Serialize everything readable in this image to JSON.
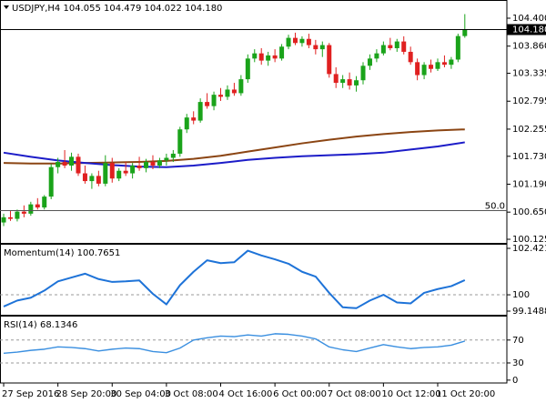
{
  "chart_data": [
    {
      "type": "candlestick",
      "title": "USDJPY,H4  104.055 104.479 104.022 104.180",
      "xlim": [
        -0.54,
        74.2
      ],
      "xticks": [
        {
          "value": 0,
          "label": "27 Sep 2016"
        },
        {
          "value": 8,
          "label": "28 Sep 20:00"
        },
        {
          "value": 16,
          "label": "30 Sep 04:00"
        },
        {
          "value": 24,
          "label": "3 Oct 08:00"
        },
        {
          "value": 32,
          "label": "4 Oct 16:00"
        },
        {
          "value": 40,
          "label": "6 Oct 00:00"
        },
        {
          "value": 48,
          "label": "7 Oct 08:00"
        },
        {
          "value": 56,
          "label": "10 Oct 12:00"
        },
        {
          "value": 64,
          "label": "11 Oct 20:00"
        }
      ],
      "ylim": [
        100.055,
        104.752
      ],
      "yticks": [
        {
          "value": 104.4,
          "label": "104.400"
        },
        {
          "value": 103.86,
          "label": "103.860"
        },
        103.335,
        102.795,
        102.255,
        {
          "value": 101.73,
          "label": "101.730"
        },
        {
          "value": 101.19,
          "label": "101.190"
        },
        {
          "value": 100.65,
          "label": "100.650"
        },
        100.125
      ],
      "up_color": "#1aa31a",
      "down_color": "#e02020",
      "open": [
        100.45,
        100.55,
        100.52,
        100.66,
        100.62,
        100.8,
        100.74,
        100.95,
        101.52,
        101.62,
        101.55,
        101.72,
        101.4,
        101.25,
        101.35,
        101.2,
        101.6,
        101.3,
        101.45,
        101.4,
        101.55,
        101.5,
        101.62,
        101.55,
        101.65,
        101.7,
        101.78,
        102.25,
        102.48,
        102.42,
        102.78,
        102.7,
        102.92,
        102.88,
        103.02,
        102.95,
        103.22,
        103.62,
        103.72,
        103.58,
        103.68,
        103.62,
        103.85,
        104.02,
        103.92,
        104.0,
        103.88,
        103.8,
        103.88,
        103.32,
        103.15,
        103.22,
        103.1,
        103.2,
        103.48,
        103.62,
        103.72,
        103.88,
        103.82,
        103.95,
        103.75,
        103.55,
        103.3,
        103.5,
        103.42,
        103.55,
        103.5,
        103.6,
        104.055
      ],
      "high": [
        100.62,
        100.68,
        100.7,
        100.78,
        100.85,
        100.92,
        100.98,
        101.58,
        101.7,
        101.85,
        101.8,
        101.78,
        101.55,
        101.4,
        101.45,
        101.75,
        101.7,
        101.5,
        101.62,
        101.6,
        101.72,
        101.68,
        101.75,
        101.7,
        101.78,
        101.85,
        102.3,
        102.55,
        102.6,
        102.85,
        102.95,
        102.98,
        103.05,
        103.1,
        103.15,
        103.3,
        103.7,
        103.8,
        103.82,
        103.75,
        103.8,
        103.9,
        104.08,
        104.12,
        104.05,
        104.1,
        103.98,
        103.95,
        103.92,
        103.45,
        103.3,
        103.35,
        103.28,
        103.55,
        103.7,
        103.8,
        103.95,
        104.02,
        104.0,
        104.05,
        103.85,
        103.62,
        103.55,
        103.6,
        103.62,
        103.68,
        103.65,
        104.1,
        104.479
      ],
      "low": [
        100.38,
        100.48,
        100.47,
        100.55,
        100.58,
        100.7,
        100.7,
        100.9,
        101.4,
        101.5,
        101.45,
        101.35,
        101.2,
        101.1,
        101.15,
        101.15,
        101.22,
        101.25,
        101.35,
        101.3,
        101.45,
        101.42,
        101.48,
        101.5,
        101.55,
        101.62,
        101.72,
        102.18,
        102.35,
        102.38,
        102.65,
        102.62,
        102.8,
        102.82,
        102.9,
        102.9,
        103.15,
        103.55,
        103.5,
        103.48,
        103.55,
        103.58,
        103.8,
        103.88,
        103.85,
        103.82,
        103.7,
        103.65,
        103.25,
        103.05,
        103.05,
        103.02,
        102.98,
        103.12,
        103.4,
        103.55,
        103.68,
        103.78,
        103.75,
        103.7,
        103.5,
        103.2,
        103.22,
        103.35,
        103.38,
        103.45,
        103.42,
        103.55,
        104.022
      ],
      "close": [
        100.55,
        100.52,
        100.66,
        100.62,
        100.8,
        100.74,
        100.95,
        101.52,
        101.62,
        101.55,
        101.72,
        101.4,
        101.25,
        101.35,
        101.2,
        101.6,
        101.3,
        101.45,
        101.4,
        101.55,
        101.5,
        101.62,
        101.55,
        101.65,
        101.7,
        101.78,
        102.25,
        102.48,
        102.42,
        102.78,
        102.7,
        102.92,
        102.88,
        103.02,
        102.95,
        103.22,
        103.62,
        103.72,
        103.58,
        103.68,
        103.62,
        103.85,
        104.02,
        103.92,
        104.0,
        103.88,
        103.8,
        103.88,
        103.32,
        103.15,
        103.22,
        103.1,
        103.2,
        103.48,
        103.62,
        103.72,
        103.88,
        103.82,
        103.95,
        103.75,
        103.55,
        103.3,
        103.5,
        103.42,
        103.55,
        103.5,
        103.6,
        104.055,
        104.18
      ],
      "lines": [
        {
          "color": "#8b4513",
          "x": [
            0,
            4,
            8,
            12,
            16,
            20,
            24,
            28,
            32,
            36,
            40,
            44,
            48,
            52,
            56,
            60,
            64,
            68
          ],
          "values": [
            101.6,
            101.59,
            101.59,
            101.6,
            101.61,
            101.62,
            101.64,
            101.68,
            101.74,
            101.82,
            101.9,
            101.98,
            102.05,
            102.11,
            102.16,
            102.2,
            102.23,
            102.25
          ]
        },
        {
          "color": "#1c1cc8",
          "x": [
            0,
            4,
            8,
            12,
            16,
            20,
            24,
            28,
            32,
            36,
            40,
            44,
            48,
            52,
            56,
            60,
            64,
            68
          ],
          "values": [
            101.8,
            101.72,
            101.65,
            101.6,
            101.56,
            101.53,
            101.52,
            101.55,
            101.6,
            101.66,
            101.7,
            101.73,
            101.75,
            101.77,
            101.8,
            101.86,
            101.92,
            102.0
          ]
        }
      ],
      "last_price": {
        "value": 104.18,
        "label": "104.180"
      },
      "hline": {
        "price": 100.68,
        "text": "50.0"
      }
    },
    {
      "type": "line",
      "title": "Momentum(14) 100.7651",
      "ylim": [
        99.1488,
        102.4214
      ],
      "yticks": [
        102.4214,
        100,
        99.1488
      ],
      "levels": [
        100
      ],
      "series": [
        {
          "color": "#1e73d8",
          "x": [
            0,
            2,
            4,
            6,
            8,
            10,
            12,
            14,
            16,
            18,
            20,
            22,
            24,
            26,
            28,
            30,
            32,
            34,
            36,
            38,
            40,
            42,
            44,
            46,
            48,
            50,
            52,
            54,
            56,
            58,
            60,
            62,
            64,
            66,
            68
          ],
          "values": [
            99.39,
            99.7,
            99.85,
            100.22,
            100.7,
            100.9,
            101.1,
            100.82,
            100.67,
            100.7,
            100.75,
            100.05,
            99.5,
            100.5,
            101.2,
            101.8,
            101.65,
            101.7,
            102.3,
            102.05,
            101.85,
            101.62,
            101.2,
            100.95,
            100.1,
            99.35,
            99.3,
            99.7,
            100.0,
            99.6,
            99.55,
            100.1,
            100.3,
            100.45,
            100.7651
          ]
        }
      ]
    },
    {
      "type": "line",
      "title": "RSI(14) 68.1346",
      "ylim": [
        -5,
        111
      ],
      "yticks": [
        70,
        30,
        0
      ],
      "levels": [
        70,
        30
      ],
      "series": [
        {
          "color": "#3a8fe0",
          "x": [
            0,
            2,
            4,
            6,
            8,
            10,
            12,
            14,
            16,
            18,
            20,
            22,
            24,
            26,
            28,
            30,
            32,
            34,
            36,
            38,
            40,
            42,
            44,
            46,
            48,
            50,
            52,
            54,
            56,
            58,
            60,
            62,
            64,
            66,
            68
          ],
          "values": [
            47,
            49,
            52,
            54,
            58,
            57,
            55,
            51,
            54,
            56,
            55,
            50,
            48,
            56,
            70,
            74,
            77,
            76,
            79,
            77,
            81,
            80,
            77,
            72,
            58,
            53,
            50,
            56,
            62,
            58,
            55,
            57,
            58,
            61,
            68.1346
          ]
        }
      ]
    }
  ]
}
